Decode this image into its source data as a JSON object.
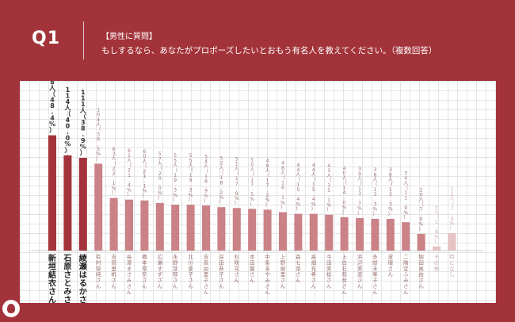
{
  "header": {
    "q_label": "Q1",
    "subtitle": "【男性に質問】",
    "question": "もしするなら、あなたがプロポーズしたいとおもう有名人を教えてください。（複数回答）"
  },
  "colors": {
    "background": "#a3333a",
    "bar_dark": "#a3333a",
    "bar_light": "#ca8286",
    "bar_faint": "#e7c3c5"
  },
  "icons": {
    "logo": "logo-icon"
  },
  "chart_data": {
    "type": "bar",
    "title": "",
    "xlabel": "",
    "ylabel": "",
    "ylim": [
      0,
      160
    ],
    "grid": true,
    "legend": "none",
    "categories": [
      "新垣結衣さん",
      "石原さとみさん",
      "綾瀬はるかさん",
      "有村架純さん",
      "吉岡里帆さん",
      "長澤まさみさん",
      "橋本環奈さん",
      "広瀬すずさん",
      "永野芽郁さん",
      "北川景子さん",
      "吉高由里子さん",
      "深田恭子さん",
      "杉咲花さん",
      "本田翼さん",
      "中条あやみさん",
      "上野樹里さん",
      "森七菜さん",
      "高畑充希さん",
      "今田美桜さん",
      "上白石萌音さん",
      "浜辺美波さん",
      "多部未華子さん",
      "波瑠さん",
      "二階堂ふみさん",
      "堀田真由さん",
      "その他",
      "特になし"
    ],
    "values": [
      138,
      114,
      111,
      104,
      63,
      61,
      60,
      57,
      55,
      55,
      54,
      52,
      51,
      50,
      49,
      46,
      44,
      44,
      43,
      40,
      39,
      38,
      38,
      34,
      20,
      5,
      21
    ],
    "labels": [
      "138人（48.4%）",
      "114人（40.0%）",
      "111人（38.9%）",
      "104人（36.5%）",
      "63人（22.1%）",
      "61人（21.4%）",
      "60人（21.1%）",
      "57人（20.0%）",
      "55人（19.3%）",
      "55人（19.3%）",
      "54人（18.9%）",
      "52人（18.2%）",
      "51人（17.9%）",
      "50人（17.5%）",
      "49人（17.2%）",
      "46人（16.1%）",
      "44人（15.4%）",
      "44人（15.4%）",
      "43人（15.1%）",
      "40人（14.0%）",
      "39人（13.7%）",
      "38人（13.3%）",
      "38人（13.3%）",
      "34人（11.9%）",
      "20人（7.0%）",
      "5人（1.8%）",
      "21人（7.4%）"
    ]
  }
}
